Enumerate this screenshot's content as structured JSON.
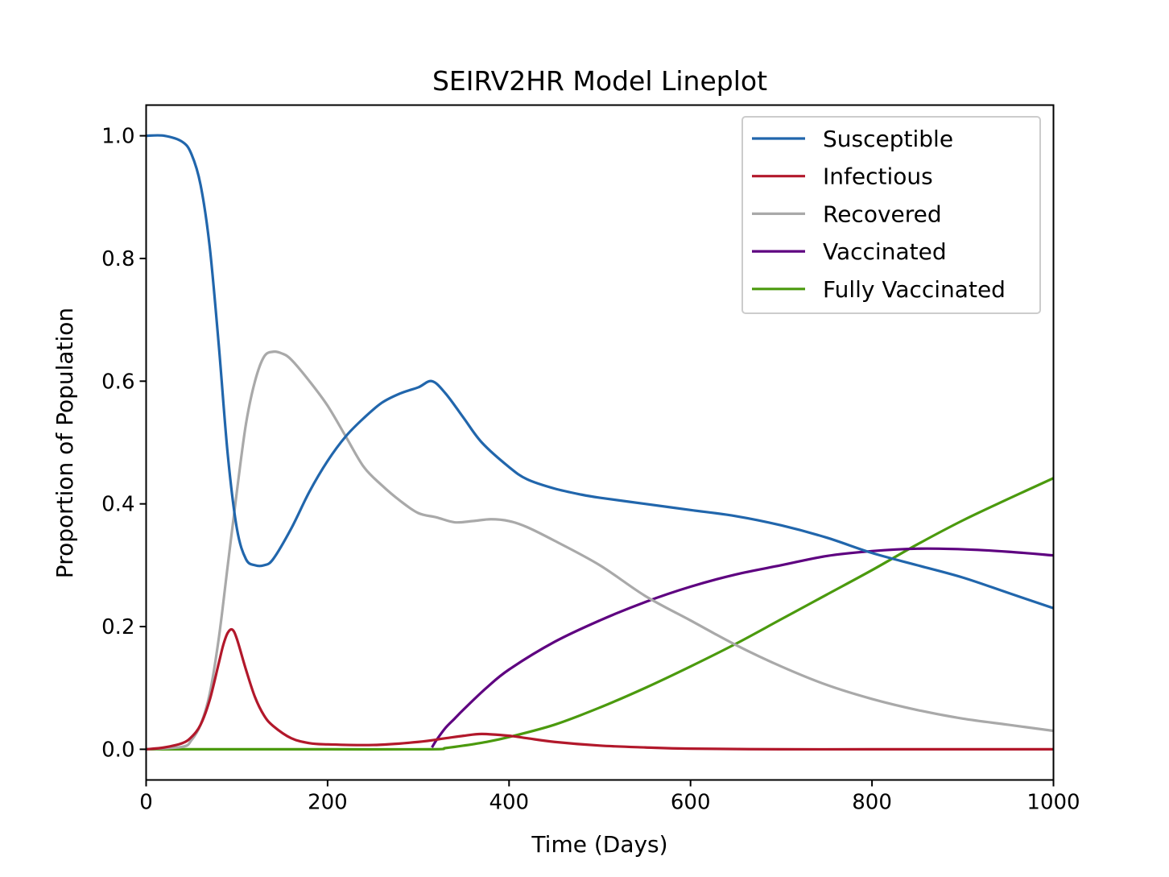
{
  "chart_data": {
    "type": "line",
    "title": "SEIRV2HR Model Lineplot",
    "xlabel": "Time (Days)",
    "ylabel": "Proportion of Population",
    "xlim": [
      0,
      1000
    ],
    "ylim": [
      -0.05,
      1.05
    ],
    "xticks": [
      0,
      200,
      400,
      600,
      800,
      1000
    ],
    "xtick_labels": [
      "0",
      "200",
      "400",
      "600",
      "800",
      "1000"
    ],
    "yticks": [
      0.0,
      0.2,
      0.4,
      0.6,
      0.8,
      1.0
    ],
    "ytick_labels": [
      "0.0",
      "0.2",
      "0.4",
      "0.6",
      "0.8",
      "1.0"
    ],
    "grid": false,
    "legend_position": "top-right",
    "series": [
      {
        "name": "Susceptible",
        "color": "#2166ac",
        "x": [
          0,
          20,
          40,
          50,
          60,
          70,
          80,
          90,
          100,
          110,
          120,
          130,
          140,
          160,
          180,
          200,
          220,
          240,
          260,
          280,
          300,
          315,
          330,
          350,
          370,
          400,
          420,
          450,
          480,
          500,
          550,
          600,
          650,
          700,
          750,
          800,
          850,
          900,
          950,
          1000
        ],
        "y": [
          1.0,
          1.0,
          0.99,
          0.97,
          0.92,
          0.82,
          0.66,
          0.48,
          0.36,
          0.31,
          0.3,
          0.3,
          0.31,
          0.36,
          0.42,
          0.47,
          0.51,
          0.54,
          0.565,
          0.58,
          0.59,
          0.6,
          0.58,
          0.54,
          0.5,
          0.46,
          0.44,
          0.425,
          0.415,
          0.41,
          0.4,
          0.39,
          0.38,
          0.365,
          0.345,
          0.32,
          0.3,
          0.28,
          0.255,
          0.23
        ]
      },
      {
        "name": "Infectious",
        "color": "#b2182b",
        "x": [
          0,
          20,
          40,
          50,
          60,
          70,
          80,
          85,
          90,
          95,
          100,
          110,
          120,
          130,
          140,
          160,
          180,
          200,
          250,
          300,
          330,
          350,
          370,
          400,
          420,
          450,
          500,
          550,
          600,
          700,
          800,
          900,
          1000
        ],
        "y": [
          0.0,
          0.003,
          0.01,
          0.02,
          0.04,
          0.08,
          0.14,
          0.17,
          0.19,
          0.195,
          0.18,
          0.13,
          0.085,
          0.055,
          0.038,
          0.018,
          0.01,
          0.008,
          0.007,
          0.012,
          0.018,
          0.022,
          0.025,
          0.022,
          0.018,
          0.012,
          0.006,
          0.003,
          0.001,
          0.0,
          0.0,
          0.0,
          0.0
        ]
      },
      {
        "name": "Recovered",
        "color": "#a9a9a9",
        "x": [
          0,
          40,
          50,
          60,
          70,
          80,
          90,
          100,
          110,
          120,
          130,
          140,
          150,
          160,
          180,
          200,
          220,
          240,
          260,
          280,
          300,
          320,
          340,
          360,
          380,
          400,
          420,
          450,
          500,
          550,
          600,
          650,
          700,
          750,
          800,
          850,
          900,
          950,
          1000
        ],
        "y": [
          0.0,
          0.004,
          0.015,
          0.04,
          0.09,
          0.18,
          0.3,
          0.42,
          0.53,
          0.6,
          0.64,
          0.648,
          0.645,
          0.635,
          0.6,
          0.56,
          0.51,
          0.46,
          0.43,
          0.405,
          0.385,
          0.378,
          0.37,
          0.372,
          0.375,
          0.372,
          0.362,
          0.34,
          0.3,
          0.25,
          0.21,
          0.17,
          0.135,
          0.105,
          0.082,
          0.064,
          0.05,
          0.04,
          0.03
        ]
      },
      {
        "name": "Vaccinated",
        "color": "#5e0080",
        "x": [
          315,
          320,
          330,
          340,
          350,
          375,
          400,
          450,
          500,
          550,
          600,
          650,
          700,
          750,
          800,
          850,
          900,
          950,
          1000
        ],
        "y": [
          0.003,
          0.015,
          0.035,
          0.05,
          0.065,
          0.1,
          0.13,
          0.175,
          0.21,
          0.24,
          0.265,
          0.285,
          0.3,
          0.315,
          0.323,
          0.327,
          0.326,
          0.322,
          0.316
        ]
      },
      {
        "name": "Fully Vaccinated",
        "color": "#4b9a0e",
        "x": [
          0,
          100,
          200,
          315,
          330,
          350,
          375,
          400,
          450,
          500,
          550,
          600,
          650,
          700,
          750,
          800,
          850,
          900,
          950,
          1000
        ],
        "y": [
          0.0,
          0.0,
          0.0,
          0.0,
          0.002,
          0.006,
          0.012,
          0.02,
          0.04,
          0.068,
          0.1,
          0.135,
          0.172,
          0.212,
          0.252,
          0.292,
          0.334,
          0.373,
          0.408,
          0.442
        ]
      }
    ]
  }
}
